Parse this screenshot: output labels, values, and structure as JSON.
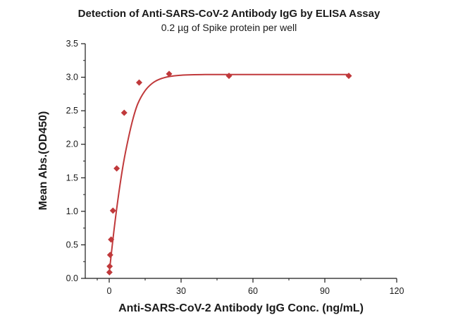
{
  "chart_data": {
    "type": "scatter",
    "title": "Detection of Anti-SARS-CoV-2 Antibody IgG by ELISA Assay",
    "subtitle": "0.2 µg of Spike protein  per well",
    "xlabel": "Anti-SARS-CoV-2 Antibody IgG Conc. (ng/mL)",
    "ylabel": "Mean Abs.(OD450)",
    "xlim": [
      -10,
      120
    ],
    "ylim": [
      0,
      3.5
    ],
    "x_ticks": [
      0,
      30,
      60,
      90,
      120
    ],
    "y_ticks": [
      0.0,
      0.5,
      1.0,
      1.5,
      2.0,
      2.5,
      3.0,
      3.5
    ],
    "x_tick_labels": [
      "0",
      "30",
      "60",
      "90",
      "120"
    ],
    "y_tick_labels": [
      "0.0",
      "0.5",
      "1.0",
      "1.5",
      "2.0",
      "2.5",
      "3.0",
      "3.5"
    ],
    "grid": false,
    "series": [
      {
        "marker": "diamond",
        "color": "#c0393b",
        "x": [
          0.098,
          0.195,
          0.39,
          0.781,
          1.563,
          3.125,
          6.25,
          12.5,
          25,
          50,
          100
        ],
        "y": [
          0.09,
          0.18,
          0.35,
          0.58,
          1.01,
          1.64,
          2.47,
          2.92,
          3.05,
          3.02,
          3.02
        ]
      }
    ],
    "fit_curve": {
      "type": "exponential-saturation",
      "color": "#c0393b",
      "points": [
        [
          0,
          0.08
        ],
        [
          2,
          0.72
        ],
        [
          4,
          1.27
        ],
        [
          6,
          1.73
        ],
        [
          8,
          2.09
        ],
        [
          10,
          2.39
        ],
        [
          12,
          2.61
        ],
        [
          15,
          2.8
        ],
        [
          18,
          2.91
        ],
        [
          21,
          2.97
        ],
        [
          25,
          3.01
        ],
        [
          30,
          3.03
        ],
        [
          40,
          3.04
        ],
        [
          50,
          3.04
        ],
        [
          60,
          3.04
        ],
        [
          80,
          3.04
        ],
        [
          100,
          3.04
        ]
      ]
    }
  }
}
